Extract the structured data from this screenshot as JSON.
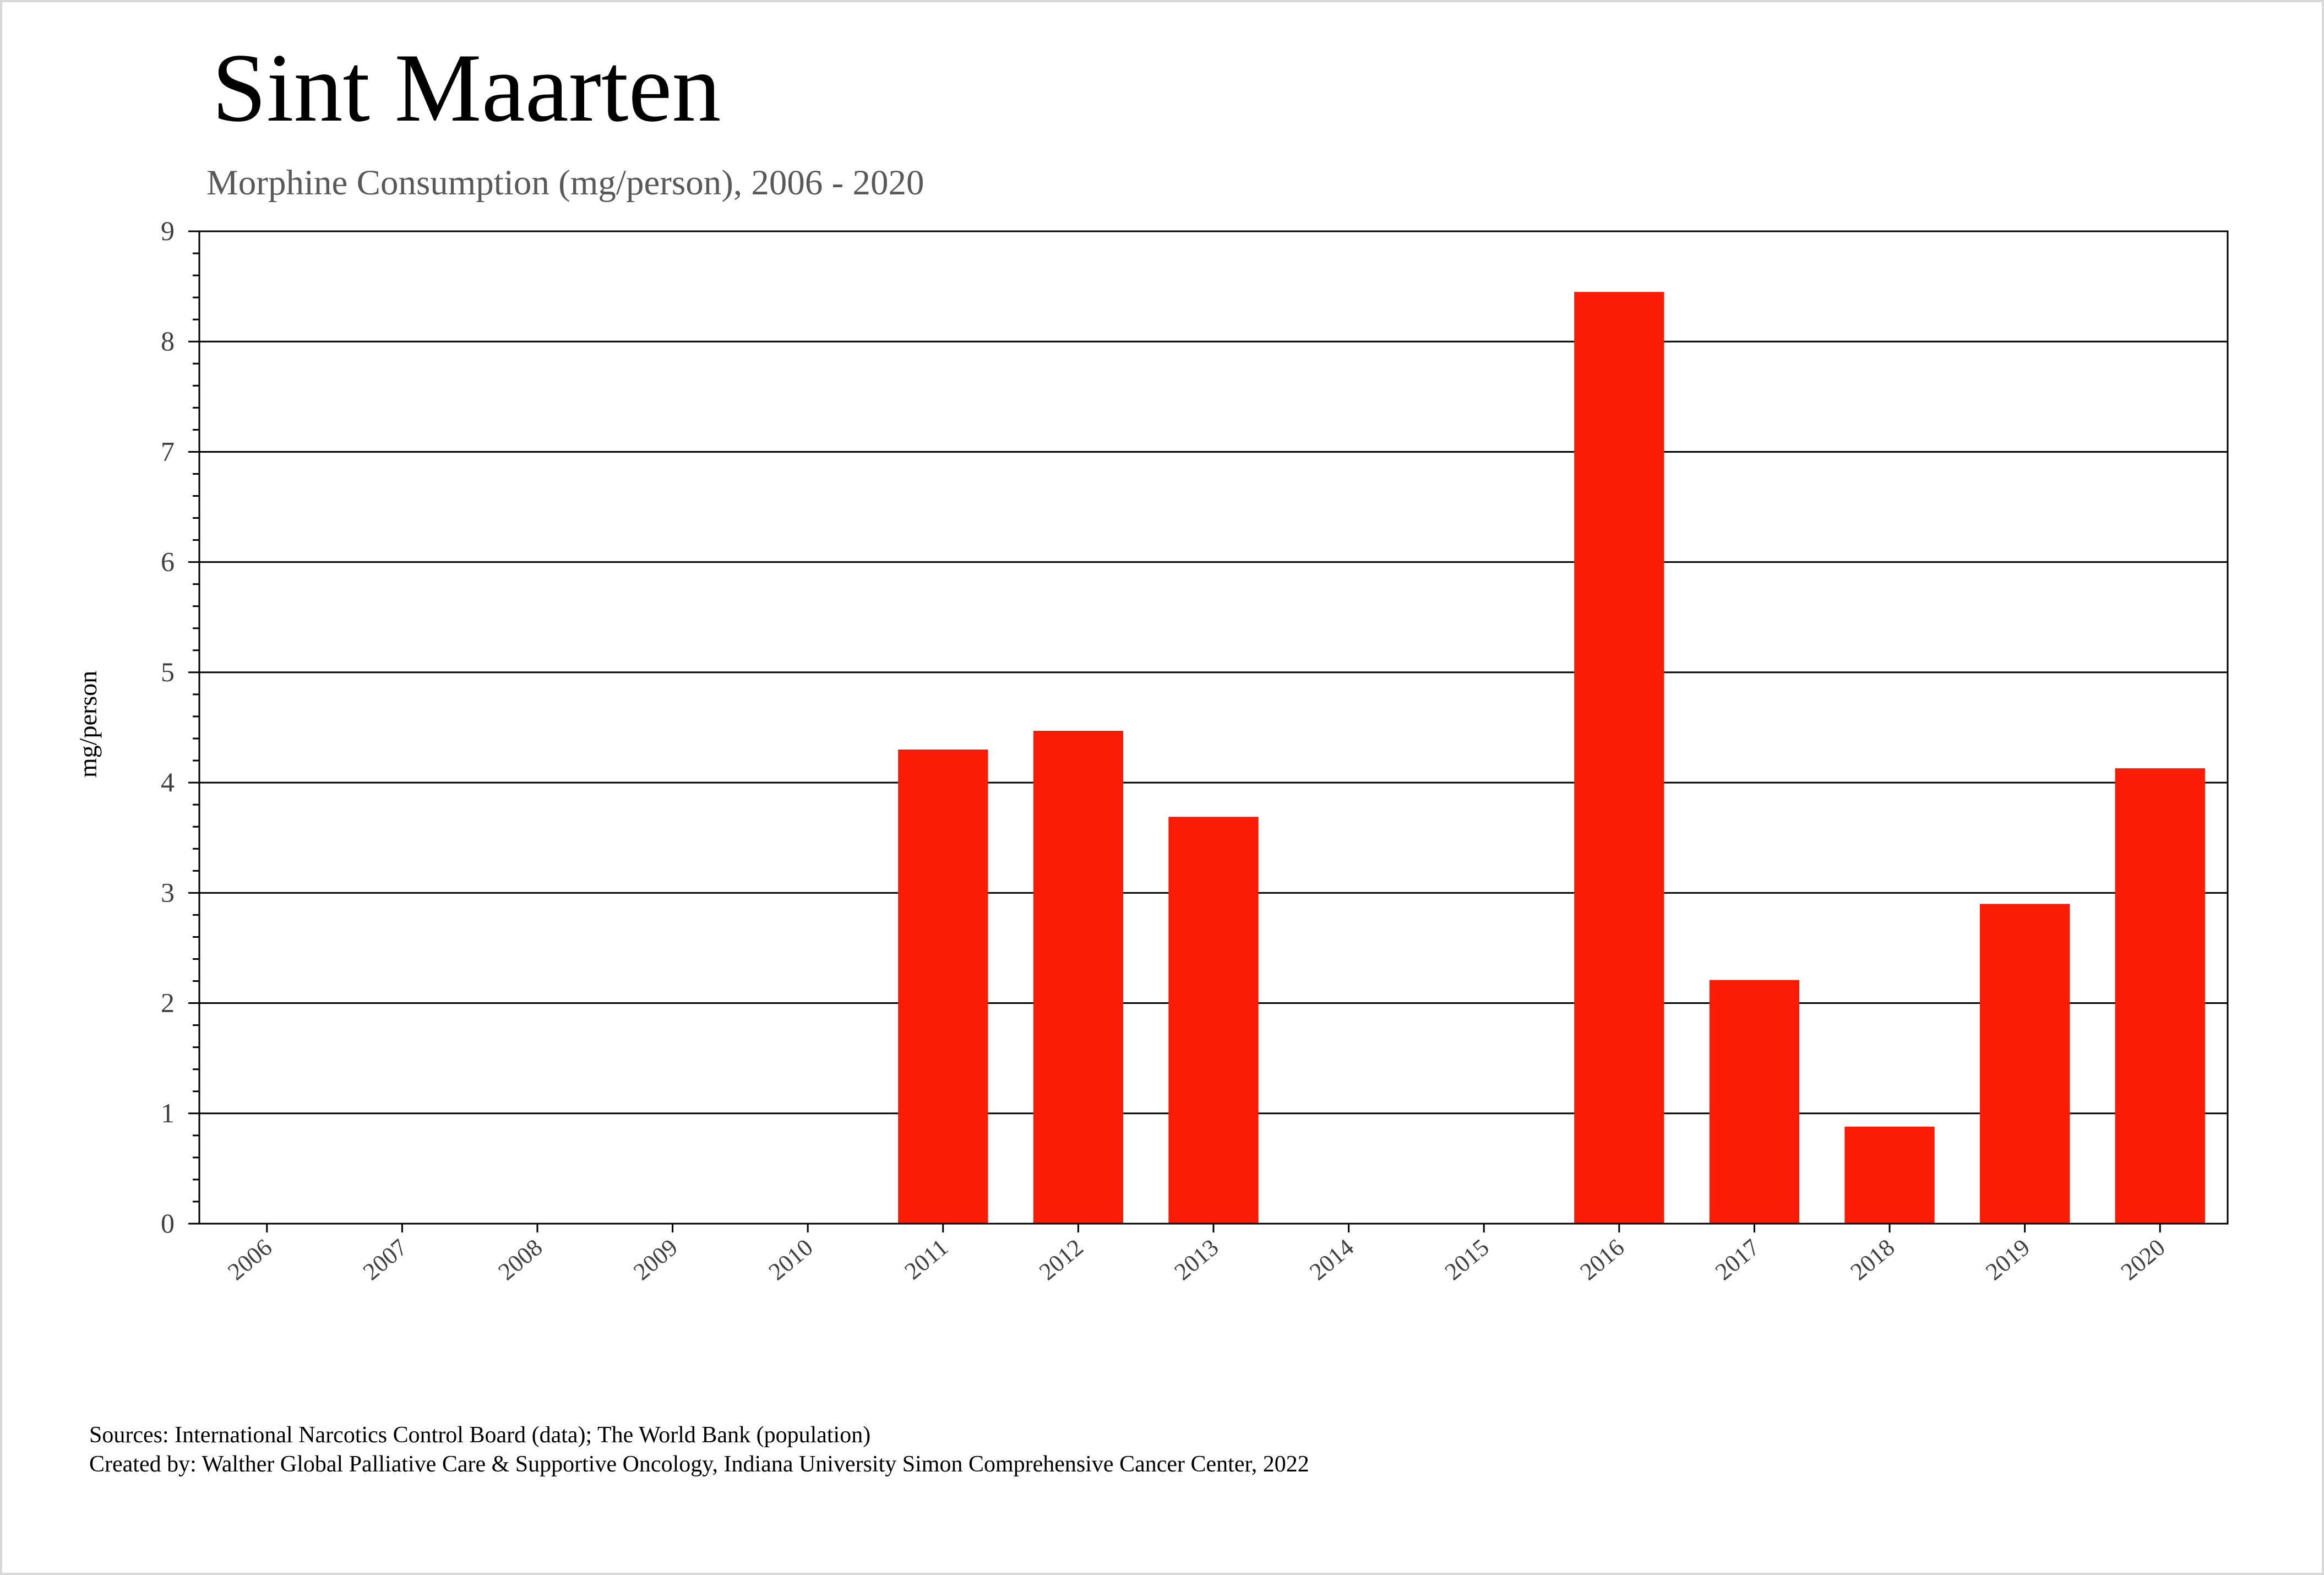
{
  "chart_data": {
    "type": "bar",
    "title": "Sint Maarten",
    "subtitle": "Morphine Consumption (mg/person), 2006 - 2020",
    "ylabel": "mg/person",
    "xlabel": "",
    "categories": [
      "2006",
      "2007",
      "2008",
      "2009",
      "2010",
      "2011",
      "2012",
      "2013",
      "2014",
      "2015",
      "2016",
      "2017",
      "2018",
      "2019",
      "2020"
    ],
    "values": [
      0,
      0,
      0,
      0,
      0,
      4.3,
      4.47,
      3.69,
      0,
      0,
      8.45,
      2.21,
      0.88,
      2.9,
      4.13
    ],
    "ylim": [
      0,
      9
    ],
    "yticks": [
      "0",
      "1",
      "2",
      "3",
      "4",
      "5",
      "6",
      "7",
      "8",
      "9"
    ],
    "grid": true,
    "bar_color": "#fa1c05"
  },
  "footer": {
    "sources": "Sources: International Narcotics Control Board (data); The World Bank (population)",
    "created_by": "Created by: Walther  Global Palliative Care & Supportive Oncology, Indiana University Simon Comprehensive Cancer Center, 2022"
  }
}
